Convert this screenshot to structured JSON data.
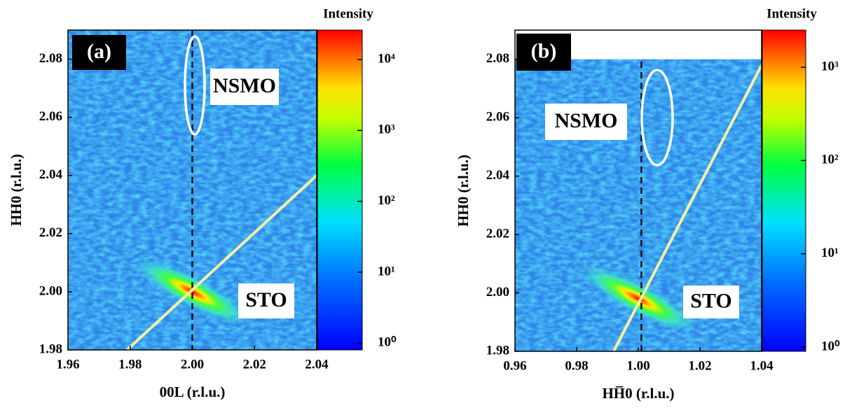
{
  "chart_data": [
    {
      "type": "heatmap",
      "panel_label": "(a)",
      "xlabel": "00L (r.l.u.)",
      "ylabel": "HH0 (r.l.u.)",
      "xlim": [
        1.96,
        2.04
      ],
      "ylim": [
        1.98,
        2.09
      ],
      "xticks": [
        1.96,
        1.98,
        {
          "value": 2,
          "label": "2.00"
        },
        2.02,
        2.04
      ],
      "yticks": [
        1.98,
        {
          "value": 2,
          "label": "2.00"
        },
        2.02,
        2.04,
        2.06,
        2.08
      ],
      "peak": {
        "x": 2.0,
        "y": 2.0
      },
      "vline": 2.0,
      "guide_line": {
        "x": [
          1.979,
          2.04
        ],
        "y": [
          1.98,
          2.04
        ]
      },
      "annotations": [
        "NSMO",
        "STO"
      ],
      "colorbar": {
        "title": "Intensity",
        "log": true,
        "lim": [
          0.8,
          26000
        ],
        "ticks": [
          {
            "value": 1,
            "label": "10⁰"
          },
          {
            "value": 10,
            "label": "10¹"
          },
          {
            "value": 100,
            "label": "10²"
          },
          {
            "value": 1000,
            "label": "10³"
          },
          {
            "value": 10000,
            "label": "10⁴"
          }
        ]
      }
    },
    {
      "type": "heatmap",
      "panel_label": "(b)",
      "xlabel": "HH̅0 (r.l.u.)",
      "ylabel": "HH0 (r.l.u.)",
      "xlim": [
        0.96,
        1.04
      ],
      "ylim": [
        1.98,
        2.09
      ],
      "data_ylim": [
        1.98,
        2.08
      ],
      "xticks": [
        0.96,
        0.98,
        {
          "value": 1,
          "label": "1.00"
        },
        1.02,
        1.04
      ],
      "yticks": [
        1.98,
        {
          "value": 2,
          "label": "2.00"
        },
        2.02,
        2.04,
        2.06,
        2.08
      ],
      "peak": {
        "x": 1.0,
        "y": 1.998
      },
      "vline": 1.001,
      "guide_line": {
        "x": [
          0.992,
          1.04
        ],
        "y": [
          1.98,
          2.078
        ]
      },
      "annotations": [
        "NSMO",
        "STO"
      ],
      "colorbar": {
        "title": "Intensity",
        "log": true,
        "lim": [
          0.9,
          2500
        ],
        "ticks": [
          {
            "value": 1,
            "label": "10⁰"
          },
          {
            "value": 10,
            "label": "10¹"
          },
          {
            "value": 100,
            "label": "10²"
          },
          {
            "value": 1000,
            "label": "10³"
          }
        ]
      }
    }
  ]
}
